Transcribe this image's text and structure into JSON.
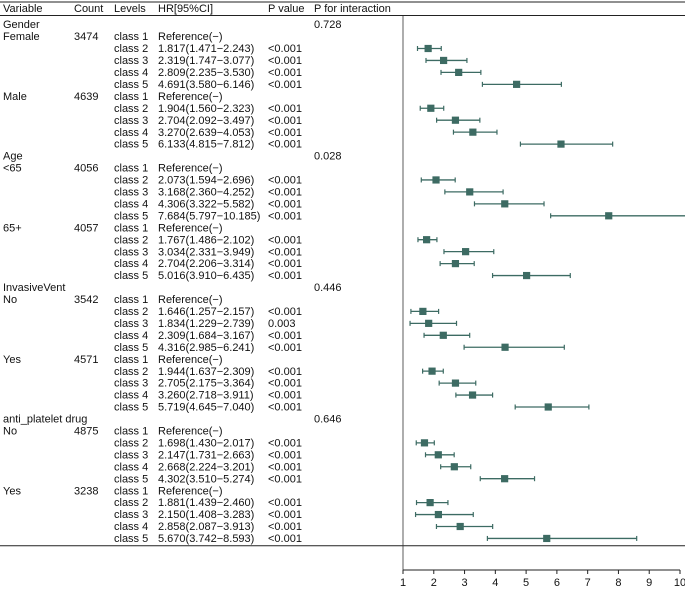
{
  "headers": [
    "Variable",
    "Count",
    "Levels",
    "HR[95%CI]",
    "P value",
    "P for interaction"
  ],
  "chart_data": {
    "type": "forest",
    "xlim": [
      1,
      10
    ],
    "xticks": [
      1,
      2,
      3,
      4,
      5,
      6,
      7,
      8,
      9,
      10
    ],
    "reference_line": 1,
    "marker_color": "#3d6b63",
    "groups": [
      {
        "variable": "Gender",
        "p_interaction": "0.728",
        "subgroups": [
          {
            "name": "Female",
            "count": "3474",
            "rows": [
              {
                "level": "class 1",
                "hr_text": "Reference(−)",
                "p": ""
              },
              {
                "level": "class 2",
                "hr_text": "1.817(1.471−2.243)",
                "p": "<0.001",
                "hr": 1.817,
                "lo": 1.471,
                "hi": 2.243
              },
              {
                "level": "class 3",
                "hr_text": "2.319(1.747−3.077)",
                "p": "<0.001",
                "hr": 2.319,
                "lo": 1.747,
                "hi": 3.077
              },
              {
                "level": "class 4",
                "hr_text": "2.809(2.235−3.530)",
                "p": "<0.001",
                "hr": 2.809,
                "lo": 2.235,
                "hi": 3.53
              },
              {
                "level": "class 5",
                "hr_text": "4.691(3.580−6.146)",
                "p": "<0.001",
                "hr": 4.691,
                "lo": 3.58,
                "hi": 6.146
              }
            ]
          },
          {
            "name": "Male",
            "count": "4639",
            "rows": [
              {
                "level": "class 1",
                "hr_text": "Reference(−)",
                "p": ""
              },
              {
                "level": "class 2",
                "hr_text": "1.904(1.560−2.323)",
                "p": "<0.001",
                "hr": 1.904,
                "lo": 1.56,
                "hi": 2.323
              },
              {
                "level": "class 3",
                "hr_text": "2.704(2.092−3.497)",
                "p": "<0.001",
                "hr": 2.704,
                "lo": 2.092,
                "hi": 3.497
              },
              {
                "level": "class 4",
                "hr_text": "3.270(2.639−4.053)",
                "p": "<0.001",
                "hr": 3.27,
                "lo": 2.639,
                "hi": 4.053
              },
              {
                "level": "class 5",
                "hr_text": "6.133(4.815−7.812)",
                "p": "<0.001",
                "hr": 6.133,
                "lo": 4.815,
                "hi": 7.812
              }
            ]
          }
        ]
      },
      {
        "variable": "Age",
        "p_interaction": "0.028",
        "subgroups": [
          {
            "name": "<65",
            "count": "4056",
            "rows": [
              {
                "level": "class 1",
                "hr_text": "Reference(−)",
                "p": ""
              },
              {
                "level": "class 2",
                "hr_text": "2.073(1.594−2.696)",
                "p": "<0.001",
                "hr": 2.073,
                "lo": 1.594,
                "hi": 2.696
              },
              {
                "level": "class 3",
                "hr_text": "3.168(2.360−4.252)",
                "p": "<0.001",
                "hr": 3.168,
                "lo": 2.36,
                "hi": 4.252
              },
              {
                "level": "class 4",
                "hr_text": "4.306(3.322−5.582)",
                "p": "<0.001",
                "hr": 4.306,
                "lo": 3.322,
                "hi": 5.582
              },
              {
                "level": "class 5",
                "hr_text": "7.684(5.797−10.185)",
                "p": "<0.001",
                "hr": 7.684,
                "lo": 5.797,
                "hi": 10.185
              }
            ]
          },
          {
            "name": "65+",
            "count": "4057",
            "rows": [
              {
                "level": "class 1",
                "hr_text": "Reference(−)",
                "p": ""
              },
              {
                "level": "class 2",
                "hr_text": "1.767(1.486−2.102)",
                "p": "<0.001",
                "hr": 1.767,
                "lo": 1.486,
                "hi": 2.102
              },
              {
                "level": "class 3",
                "hr_text": "3.034(2.331−3.949)",
                "p": "<0.001",
                "hr": 3.034,
                "lo": 2.331,
                "hi": 3.949
              },
              {
                "level": "class 4",
                "hr_text": "2.704(2.206−3.314)",
                "p": "<0.001",
                "hr": 2.704,
                "lo": 2.206,
                "hi": 3.314
              },
              {
                "level": "class 5",
                "hr_text": "5.016(3.910−6.435)",
                "p": "<0.001",
                "hr": 5.016,
                "lo": 3.91,
                "hi": 6.435
              }
            ]
          }
        ]
      },
      {
        "variable": "InvasiveVent",
        "p_interaction": "0.446",
        "subgroups": [
          {
            "name": "No",
            "count": "3542",
            "rows": [
              {
                "level": "class 1",
                "hr_text": "Reference(−)",
                "p": ""
              },
              {
                "level": "class 2",
                "hr_text": "1.646(1.257−2.157)",
                "p": "<0.001",
                "hr": 1.646,
                "lo": 1.257,
                "hi": 2.157
              },
              {
                "level": "class 3",
                "hr_text": "1.834(1.229−2.739)",
                "p": "0.003",
                "hr": 1.834,
                "lo": 1.229,
                "hi": 2.739
              },
              {
                "level": "class 4",
                "hr_text": "2.309(1.684−3.167)",
                "p": "<0.001",
                "hr": 2.309,
                "lo": 1.684,
                "hi": 3.167
              },
              {
                "level": "class 5",
                "hr_text": "4.316(2.985−6.241)",
                "p": "<0.001",
                "hr": 4.316,
                "lo": 2.985,
                "hi": 6.241
              }
            ]
          },
          {
            "name": "Yes",
            "count": "4571",
            "rows": [
              {
                "level": "class 1",
                "hr_text": "Reference(−)",
                "p": ""
              },
              {
                "level": "class 2",
                "hr_text": "1.944(1.637−2.309)",
                "p": "<0.001",
                "hr": 1.944,
                "lo": 1.637,
                "hi": 2.309
              },
              {
                "level": "class 3",
                "hr_text": "2.705(2.175−3.364)",
                "p": "<0.001",
                "hr": 2.705,
                "lo": 2.175,
                "hi": 3.364
              },
              {
                "level": "class 4",
                "hr_text": "3.260(2.718−3.911)",
                "p": "<0.001",
                "hr": 3.26,
                "lo": 2.718,
                "hi": 3.911
              },
              {
                "level": "class 5",
                "hr_text": "5.719(4.645−7.040)",
                "p": "<0.001",
                "hr": 5.719,
                "lo": 4.645,
                "hi": 7.04
              }
            ]
          }
        ]
      },
      {
        "variable": "anti_platelet drug",
        "p_interaction": "0.646",
        "subgroups": [
          {
            "name": "No",
            "count": "4875",
            "rows": [
              {
                "level": "class 1",
                "hr_text": "Reference(−)",
                "p": ""
              },
              {
                "level": "class 2",
                "hr_text": "1.698(1.430−2.017)",
                "p": "<0.001",
                "hr": 1.698,
                "lo": 1.43,
                "hi": 2.017
              },
              {
                "level": "class 3",
                "hr_text": "2.147(1.731−2.663)",
                "p": "<0.001",
                "hr": 2.147,
                "lo": 1.731,
                "hi": 2.663
              },
              {
                "level": "class 4",
                "hr_text": "2.668(2.224−3.201)",
                "p": "<0.001",
                "hr": 2.668,
                "lo": 2.224,
                "hi": 3.201
              },
              {
                "level": "class 5",
                "hr_text": "4.302(3.510−5.274)",
                "p": "<0.001",
                "hr": 4.302,
                "lo": 3.51,
                "hi": 5.274
              }
            ]
          },
          {
            "name": "Yes",
            "count": "3238",
            "rows": [
              {
                "level": "class 1",
                "hr_text": "Reference(−)",
                "p": ""
              },
              {
                "level": "class 2",
                "hr_text": "1.881(1.439−2.460)",
                "p": "<0.001",
                "hr": 1.881,
                "lo": 1.439,
                "hi": 2.46
              },
              {
                "level": "class 3",
                "hr_text": "2.150(1.408−3.283)",
                "p": "<0.001",
                "hr": 2.15,
                "lo": 1.408,
                "hi": 3.283
              },
              {
                "level": "class 4",
                "hr_text": "2.858(2.087−3.913)",
                "p": "<0.001",
                "hr": 2.858,
                "lo": 2.087,
                "hi": 3.913
              },
              {
                "level": "class 5",
                "hr_text": "5.670(3.742−8.593)",
                "p": "<0.001",
                "hr": 5.67,
                "lo": 3.742,
                "hi": 8.593
              }
            ]
          }
        ]
      }
    ]
  }
}
